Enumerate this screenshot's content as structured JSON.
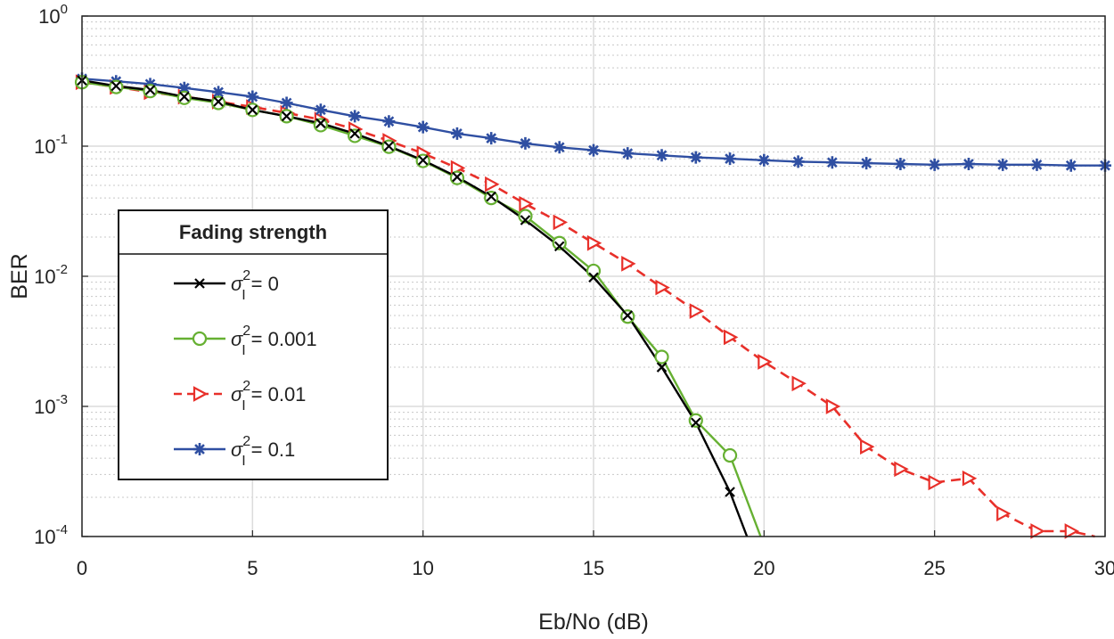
{
  "chart_data": {
    "type": "line",
    "title": "",
    "xlabel": "Eb/No (dB)",
    "ylabel": "BER",
    "xlim": [
      0,
      30
    ],
    "ylim": [
      0.0001,
      1
    ],
    "yscale": "log",
    "grid": true,
    "x_ticks": [
      {
        "value": 0,
        "label": "0"
      },
      {
        "value": 5,
        "label": "5"
      },
      {
        "value": 10,
        "label": "10"
      },
      {
        "value": 15,
        "label": "15"
      },
      {
        "value": 20,
        "label": "20"
      },
      {
        "value": 25,
        "label": "25"
      },
      {
        "value": 30,
        "label": "30"
      }
    ],
    "y_ticks": [
      {
        "value": 1,
        "base": "10",
        "exp": "0"
      },
      {
        "value": 0.1,
        "base": "10",
        "exp": "-1"
      },
      {
        "value": 0.01,
        "base": "10",
        "exp": "-2"
      },
      {
        "value": 0.001,
        "base": "10",
        "exp": "-3"
      },
      {
        "value": 0.0001,
        "base": "10",
        "exp": "-4"
      }
    ],
    "legend": {
      "title": "Fading strength",
      "position": "left",
      "entries": [
        {
          "symbol": "σ",
          "sup": "2",
          "sub": "I",
          "text": "= 0"
        },
        {
          "symbol": "σ",
          "sup": "2",
          "sub": "I",
          "text": "= 0.001"
        },
        {
          "symbol": "σ",
          "sup": "2",
          "sub": "I",
          "text": "= 0.01"
        },
        {
          "symbol": "σ",
          "sup": "2",
          "sub": "I",
          "text": "= 0.1"
        }
      ]
    },
    "series": [
      {
        "name": "σI² = 0",
        "color": "#000000",
        "dash": "solid",
        "marker": "x",
        "x": [
          0,
          1,
          2,
          3,
          4,
          5,
          6,
          7,
          8,
          9,
          10,
          11,
          12,
          13,
          14,
          15,
          16,
          17,
          18,
          19,
          19.5
        ],
        "y": [
          0.32,
          0.29,
          0.27,
          0.24,
          0.22,
          0.19,
          0.17,
          0.15,
          0.125,
          0.1,
          0.078,
          0.058,
          0.041,
          0.027,
          0.017,
          0.0098,
          0.005,
          0.002,
          0.00075,
          0.00022,
          0.0001
        ],
        "marker_x": [
          0,
          1,
          2,
          3,
          4,
          5,
          6,
          7,
          8,
          9,
          10,
          11,
          12,
          13,
          14,
          15,
          16,
          17,
          18,
          19
        ]
      },
      {
        "name": "σI² = 0.001",
        "color": "#66b032",
        "dash": "solid",
        "marker": "circle",
        "x": [
          0,
          1,
          2,
          3,
          4,
          5,
          6,
          7,
          8,
          9,
          10,
          11,
          12,
          13,
          14,
          15,
          16,
          17,
          18,
          19,
          19.9
        ],
        "y": [
          0.31,
          0.285,
          0.265,
          0.235,
          0.215,
          0.19,
          0.17,
          0.145,
          0.12,
          0.099,
          0.077,
          0.057,
          0.04,
          0.029,
          0.018,
          0.011,
          0.0049,
          0.0024,
          0.00078,
          0.00042,
          0.0001
        ],
        "marker_x": [
          0,
          1,
          2,
          3,
          4,
          5,
          6,
          7,
          8,
          9,
          10,
          11,
          12,
          13,
          14,
          15,
          16,
          17,
          18,
          19
        ]
      },
      {
        "name": "σI² = 0.01",
        "color": "#e8302a",
        "dash": "dashed",
        "marker": "triangle-right",
        "x": [
          0,
          1,
          2,
          3,
          4,
          5,
          6,
          7,
          8,
          9,
          10,
          11,
          12,
          13,
          14,
          15,
          16,
          17,
          18,
          19,
          20,
          21,
          22,
          23,
          24,
          25,
          26,
          27,
          28,
          29,
          29.7
        ],
        "y": [
          0.31,
          0.285,
          0.26,
          0.24,
          0.22,
          0.2,
          0.18,
          0.16,
          0.135,
          0.11,
          0.088,
          0.068,
          0.051,
          0.036,
          0.026,
          0.018,
          0.0125,
          0.0082,
          0.0054,
          0.0034,
          0.0022,
          0.0015,
          0.001,
          0.00049,
          0.00033,
          0.00026,
          0.00028,
          0.00015,
          0.00011,
          0.00011,
          0.0001
        ],
        "marker_x": [
          0,
          1,
          2,
          3,
          4,
          5,
          6,
          7,
          8,
          9,
          10,
          11,
          12,
          13,
          14,
          15,
          16,
          17,
          18,
          19,
          20,
          21,
          22,
          23,
          24,
          25,
          26,
          27,
          28,
          29
        ]
      },
      {
        "name": "σI² = 0.1",
        "color": "#2f4fa2",
        "dash": "solid",
        "marker": "asterisk",
        "x": [
          0,
          1,
          2,
          3,
          4,
          5,
          6,
          7,
          8,
          9,
          10,
          11,
          12,
          13,
          14,
          15,
          16,
          17,
          18,
          19,
          20,
          21,
          22,
          23,
          24,
          25,
          26,
          27,
          28,
          29,
          30
        ],
        "y": [
          0.33,
          0.315,
          0.3,
          0.28,
          0.26,
          0.24,
          0.215,
          0.19,
          0.17,
          0.155,
          0.14,
          0.125,
          0.115,
          0.105,
          0.098,
          0.093,
          0.088,
          0.085,
          0.082,
          0.08,
          0.078,
          0.076,
          0.075,
          0.074,
          0.073,
          0.072,
          0.073,
          0.072,
          0.072,
          0.071,
          0.071
        ],
        "marker_x": [
          0,
          1,
          2,
          3,
          4,
          5,
          6,
          7,
          8,
          9,
          10,
          11,
          12,
          13,
          14,
          15,
          16,
          17,
          18,
          19,
          20,
          21,
          22,
          23,
          24,
          25,
          26,
          27,
          28,
          29,
          30
        ]
      }
    ]
  }
}
